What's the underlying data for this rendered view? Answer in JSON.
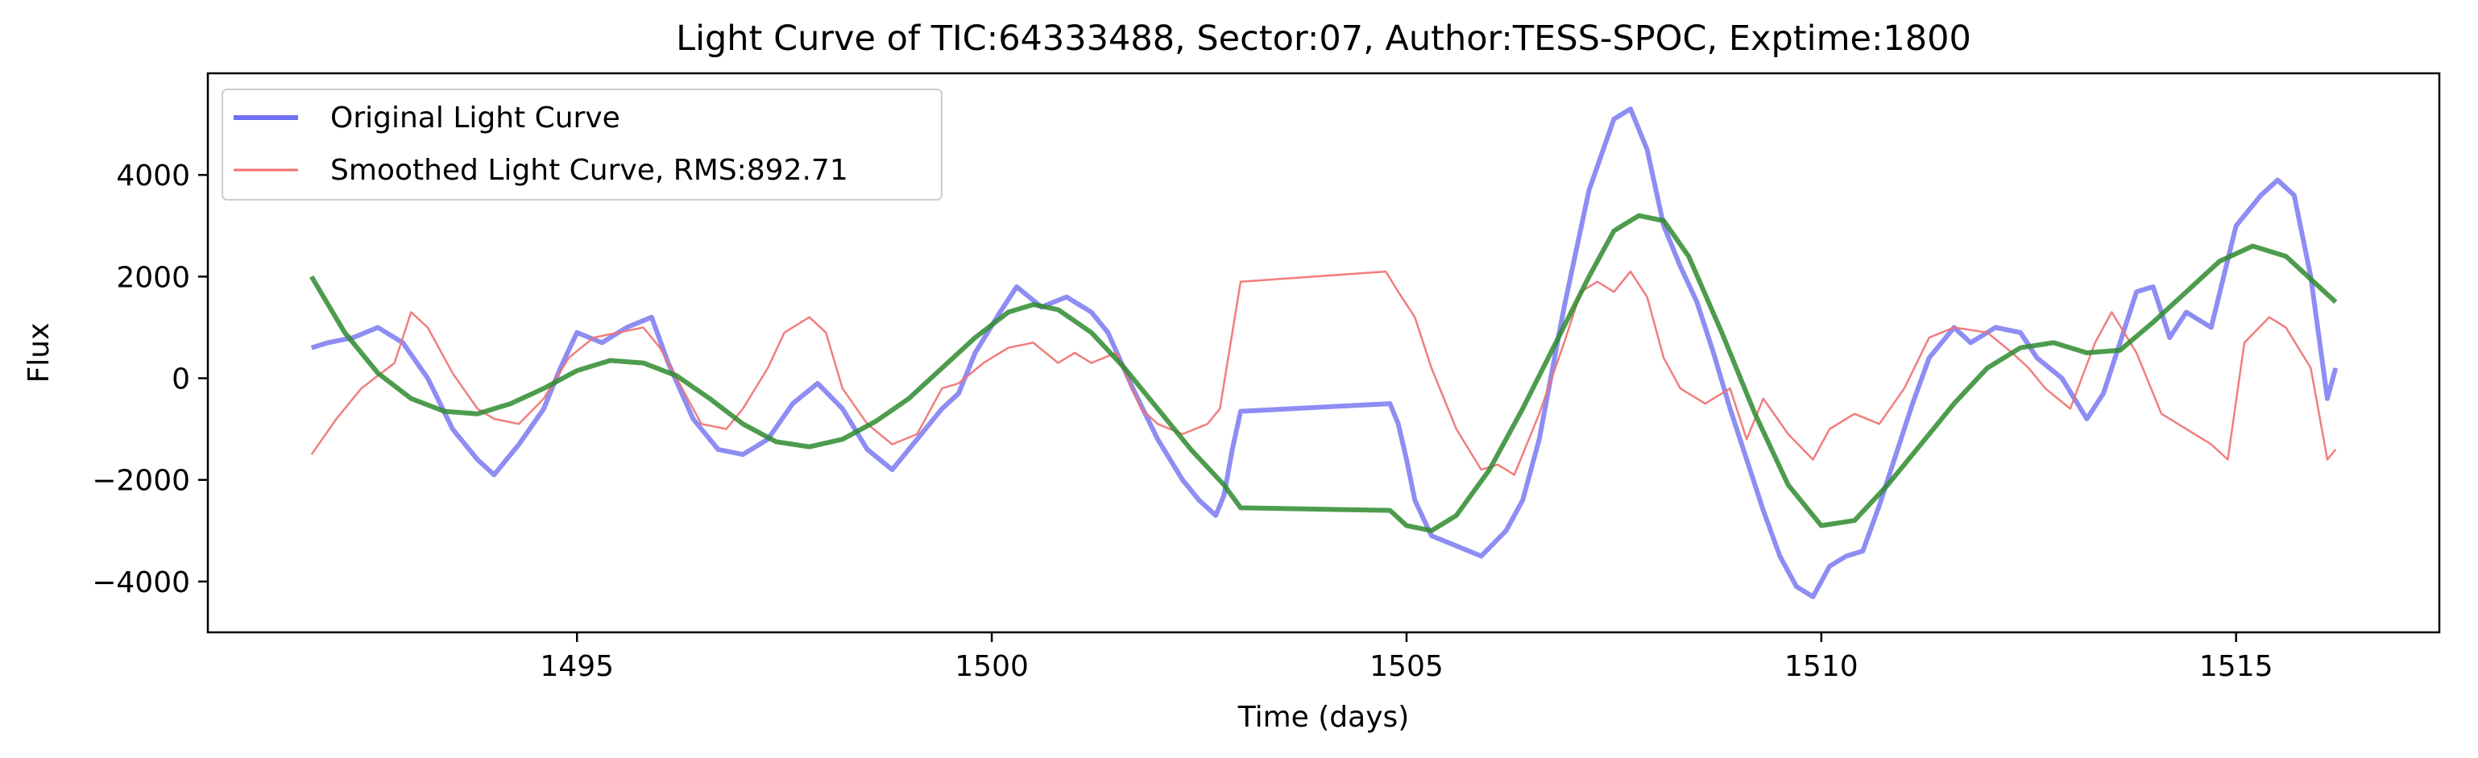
{
  "chart_data": {
    "type": "line",
    "title": "Light Curve of TIC:64333488, Sector:07, Author:TESS-SPOC, Exptime:1800",
    "xlabel": "Time (days)",
    "ylabel": "Flux",
    "xlim": [
      1490.55,
      1517.45
    ],
    "ylim": [
      -5000,
      6000
    ],
    "xticks": [
      1495,
      1500,
      1505,
      1510,
      1515
    ],
    "xtick_labels": [
      "1495",
      "1500",
      "1505",
      "1510",
      "1515"
    ],
    "yticks": [
      -4000,
      -2000,
      0,
      2000,
      4000
    ],
    "ytick_labels": [
      "−4000",
      "−2000",
      "0",
      "2000",
      "4000"
    ],
    "grid": false,
    "legend_position": "upper-left",
    "legend": [
      {
        "label": "Original Light Curve",
        "color": "#7070f0"
      },
      {
        "label": "Smoothed Light Curve, RMS:892.71",
        "color": "#f07070"
      }
    ],
    "series": [
      {
        "color": "#7070f0",
        "opacity": 0.8,
        "points": [
          [
            1491.8,
            600
          ],
          [
            1492.0,
            700
          ],
          [
            1492.3,
            800
          ],
          [
            1492.6,
            1000
          ],
          [
            1492.9,
            700
          ],
          [
            1493.2,
            0
          ],
          [
            1493.5,
            -1000
          ],
          [
            1493.8,
            -1600
          ],
          [
            1494.0,
            -1900
          ],
          [
            1494.3,
            -1300
          ],
          [
            1494.6,
            -600
          ],
          [
            1494.8,
            200
          ],
          [
            1495.0,
            900
          ],
          [
            1495.3,
            700
          ],
          [
            1495.6,
            1000
          ],
          [
            1495.9,
            1200
          ],
          [
            1496.1,
            300
          ],
          [
            1496.4,
            -800
          ],
          [
            1496.7,
            -1400
          ],
          [
            1497.0,
            -1500
          ],
          [
            1497.3,
            -1200
          ],
          [
            1497.6,
            -500
          ],
          [
            1497.9,
            -100
          ],
          [
            1498.2,
            -600
          ],
          [
            1498.5,
            -1400
          ],
          [
            1498.8,
            -1800
          ],
          [
            1499.1,
            -1200
          ],
          [
            1499.4,
            -600
          ],
          [
            1499.6,
            -300
          ],
          [
            1499.8,
            500
          ],
          [
            1500.1,
            1300
          ],
          [
            1500.3,
            1800
          ],
          [
            1500.6,
            1400
          ],
          [
            1500.9,
            1600
          ],
          [
            1501.2,
            1300
          ],
          [
            1501.4,
            900
          ],
          [
            1501.7,
            -200
          ],
          [
            1502.0,
            -1200
          ],
          [
            1502.3,
            -2000
          ],
          [
            1502.5,
            -2400
          ],
          [
            1502.7,
            -2700
          ],
          [
            1502.8,
            -2300
          ],
          [
            1502.9,
            -1400
          ],
          [
            1503.0,
            -650
          ],
          [
            1504.8,
            -500
          ],
          [
            1504.9,
            -900
          ],
          [
            1505.0,
            -1600
          ],
          [
            1505.1,
            -2400
          ],
          [
            1505.3,
            -3100
          ],
          [
            1505.6,
            -3300
          ],
          [
            1505.9,
            -3500
          ],
          [
            1506.2,
            -3000
          ],
          [
            1506.4,
            -2400
          ],
          [
            1506.6,
            -1200
          ],
          [
            1506.9,
            1400
          ],
          [
            1507.2,
            3700
          ],
          [
            1507.5,
            5100
          ],
          [
            1507.7,
            5300
          ],
          [
            1507.9,
            4500
          ],
          [
            1508.1,
            3000
          ],
          [
            1508.3,
            2200
          ],
          [
            1508.5,
            1500
          ],
          [
            1508.7,
            500
          ],
          [
            1508.9,
            -600
          ],
          [
            1509.1,
            -1600
          ],
          [
            1509.3,
            -2600
          ],
          [
            1509.5,
            -3500
          ],
          [
            1509.7,
            -4100
          ],
          [
            1509.9,
            -4300
          ],
          [
            1510.1,
            -3700
          ],
          [
            1510.3,
            -3500
          ],
          [
            1510.5,
            -3400
          ],
          [
            1510.7,
            -2500
          ],
          [
            1510.9,
            -1500
          ],
          [
            1511.1,
            -500
          ],
          [
            1511.3,
            400
          ],
          [
            1511.6,
            1000
          ],
          [
            1511.8,
            700
          ],
          [
            1512.1,
            1000
          ],
          [
            1512.4,
            900
          ],
          [
            1512.6,
            400
          ],
          [
            1512.9,
            0
          ],
          [
            1513.2,
            -800
          ],
          [
            1513.4,
            -300
          ],
          [
            1513.6,
            700
          ],
          [
            1513.8,
            1700
          ],
          [
            1514.0,
            1800
          ],
          [
            1514.2,
            800
          ],
          [
            1514.4,
            1300
          ],
          [
            1514.7,
            1000
          ],
          [
            1515.0,
            3000
          ],
          [
            1515.3,
            3600
          ],
          [
            1515.5,
            3900
          ],
          [
            1515.7,
            3600
          ],
          [
            1515.9,
            2000
          ],
          [
            1516.1,
            -400
          ],
          [
            1516.2,
            200
          ]
        ]
      },
      {
        "color": "#f07070",
        "opacity": 0.9,
        "points": [
          [
            1491.8,
            -1500
          ],
          [
            1492.1,
            -800
          ],
          [
            1492.4,
            -200
          ],
          [
            1492.8,
            300
          ],
          [
            1493.0,
            1300
          ],
          [
            1493.2,
            1000
          ],
          [
            1493.5,
            100
          ],
          [
            1493.8,
            -600
          ],
          [
            1494.0,
            -800
          ],
          [
            1494.3,
            -900
          ],
          [
            1494.6,
            -400
          ],
          [
            1494.9,
            400
          ],
          [
            1495.2,
            800
          ],
          [
            1495.5,
            900
          ],
          [
            1495.8,
            1000
          ],
          [
            1496.0,
            600
          ],
          [
            1496.3,
            -300
          ],
          [
            1496.5,
            -900
          ],
          [
            1496.8,
            -1000
          ],
          [
            1497.0,
            -600
          ],
          [
            1497.3,
            200
          ],
          [
            1497.5,
            900
          ],
          [
            1497.8,
            1200
          ],
          [
            1498.0,
            900
          ],
          [
            1498.2,
            -200
          ],
          [
            1498.5,
            -900
          ],
          [
            1498.8,
            -1300
          ],
          [
            1499.1,
            -1100
          ],
          [
            1499.4,
            -200
          ],
          [
            1499.6,
            -100
          ],
          [
            1499.9,
            300
          ],
          [
            1500.2,
            600
          ],
          [
            1500.5,
            700
          ],
          [
            1500.8,
            300
          ],
          [
            1501.0,
            500
          ],
          [
            1501.2,
            300
          ],
          [
            1501.5,
            500
          ],
          [
            1501.8,
            -600
          ],
          [
            1502.0,
            -900
          ],
          [
            1502.3,
            -1100
          ],
          [
            1502.6,
            -900
          ],
          [
            1502.75,
            -600
          ],
          [
            1503.0,
            1900
          ],
          [
            1504.75,
            2100
          ],
          [
            1504.9,
            1700
          ],
          [
            1505.1,
            1200
          ],
          [
            1505.3,
            200
          ],
          [
            1505.6,
            -1000
          ],
          [
            1505.9,
            -1800
          ],
          [
            1506.1,
            -1700
          ],
          [
            1506.3,
            -1900
          ],
          [
            1506.6,
            -700
          ],
          [
            1506.9,
            700
          ],
          [
            1507.1,
            1700
          ],
          [
            1507.3,
            1900
          ],
          [
            1507.5,
            1700
          ],
          [
            1507.7,
            2100
          ],
          [
            1507.9,
            1600
          ],
          [
            1508.1,
            400
          ],
          [
            1508.3,
            -200
          ],
          [
            1508.6,
            -500
          ],
          [
            1508.9,
            -200
          ],
          [
            1509.1,
            -1200
          ],
          [
            1509.3,
            -400
          ],
          [
            1509.6,
            -1100
          ],
          [
            1509.9,
            -1600
          ],
          [
            1510.1,
            -1000
          ],
          [
            1510.4,
            -700
          ],
          [
            1510.7,
            -900
          ],
          [
            1511.0,
            -200
          ],
          [
            1511.3,
            800
          ],
          [
            1511.6,
            1000
          ],
          [
            1512.0,
            900
          ],
          [
            1512.3,
            500
          ],
          [
            1512.5,
            200
          ],
          [
            1512.7,
            -200
          ],
          [
            1513.0,
            -600
          ],
          [
            1513.3,
            700
          ],
          [
            1513.5,
            1300
          ],
          [
            1513.8,
            500
          ],
          [
            1514.1,
            -700
          ],
          [
            1514.4,
            -1000
          ],
          [
            1514.7,
            -1300
          ],
          [
            1514.9,
            -1600
          ],
          [
            1515.1,
            700
          ],
          [
            1515.4,
            1200
          ],
          [
            1515.6,
            1000
          ],
          [
            1515.9,
            200
          ],
          [
            1516.1,
            -1600
          ],
          [
            1516.2,
            -1400
          ]
        ]
      },
      {
        "color": "#2e8b2e",
        "opacity": 0.85,
        "points": [
          [
            1491.8,
            2000
          ],
          [
            1492.2,
            900
          ],
          [
            1492.6,
            100
          ],
          [
            1493.0,
            -400
          ],
          [
            1493.4,
            -650
          ],
          [
            1493.8,
            -700
          ],
          [
            1494.2,
            -500
          ],
          [
            1494.6,
            -200
          ],
          [
            1495.0,
            150
          ],
          [
            1495.4,
            350
          ],
          [
            1495.8,
            300
          ],
          [
            1496.2,
            50
          ],
          [
            1496.6,
            -400
          ],
          [
            1497.0,
            -900
          ],
          [
            1497.4,
            -1250
          ],
          [
            1497.8,
            -1350
          ],
          [
            1498.2,
            -1200
          ],
          [
            1498.6,
            -850
          ],
          [
            1499.0,
            -400
          ],
          [
            1499.4,
            200
          ],
          [
            1499.8,
            800
          ],
          [
            1500.2,
            1300
          ],
          [
            1500.5,
            1450
          ],
          [
            1500.8,
            1350
          ],
          [
            1501.2,
            900
          ],
          [
            1501.6,
            200
          ],
          [
            1502.0,
            -600
          ],
          [
            1502.4,
            -1400
          ],
          [
            1502.8,
            -2100
          ],
          [
            1503.0,
            -2550
          ],
          [
            1504.8,
            -2600
          ],
          [
            1505.0,
            -2900
          ],
          [
            1505.3,
            -3000
          ],
          [
            1505.6,
            -2700
          ],
          [
            1506.0,
            -1800
          ],
          [
            1506.4,
            -600
          ],
          [
            1506.8,
            700
          ],
          [
            1507.2,
            2000
          ],
          [
            1507.5,
            2900
          ],
          [
            1507.8,
            3200
          ],
          [
            1508.1,
            3100
          ],
          [
            1508.4,
            2400
          ],
          [
            1508.8,
            900
          ],
          [
            1509.2,
            -700
          ],
          [
            1509.6,
            -2100
          ],
          [
            1510.0,
            -2900
          ],
          [
            1510.4,
            -2800
          ],
          [
            1510.8,
            -2100
          ],
          [
            1511.2,
            -1300
          ],
          [
            1511.6,
            -500
          ],
          [
            1512.0,
            200
          ],
          [
            1512.4,
            600
          ],
          [
            1512.8,
            700
          ],
          [
            1513.2,
            500
          ],
          [
            1513.6,
            550
          ],
          [
            1514.0,
            1100
          ],
          [
            1514.4,
            1700
          ],
          [
            1514.8,
            2300
          ],
          [
            1515.2,
            2600
          ],
          [
            1515.6,
            2400
          ],
          [
            1516.0,
            1800
          ],
          [
            1516.2,
            1500
          ]
        ]
      }
    ]
  }
}
